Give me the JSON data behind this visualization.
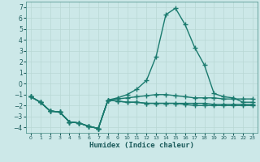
{
  "title": "",
  "xlabel": "Humidex (Indice chaleur)",
  "ylabel": "",
  "background_color": "#cce8e8",
  "grid_color": "#b8d8d4",
  "line_color": "#1a7a6e",
  "xlim": [
    -0.5,
    23.5
  ],
  "ylim": [
    -4.5,
    7.5
  ],
  "xtick_labels": [
    "0",
    "1",
    "2",
    "3",
    "4",
    "5",
    "6",
    "7",
    "8",
    "9",
    "10",
    "11",
    "12",
    "13",
    "14",
    "15",
    "16",
    "17",
    "18",
    "19",
    "20",
    "21",
    "22",
    "23"
  ],
  "xtick_vals": [
    0,
    1,
    2,
    3,
    4,
    5,
    6,
    7,
    8,
    9,
    10,
    11,
    12,
    13,
    14,
    15,
    16,
    17,
    18,
    19,
    20,
    21,
    22,
    23
  ],
  "yticks": [
    -4,
    -3,
    -2,
    -1,
    0,
    1,
    2,
    3,
    4,
    5,
    6,
    7
  ],
  "line1_x": [
    0,
    1,
    2,
    3,
    4,
    5,
    6,
    7,
    8,
    9,
    10,
    11,
    12,
    13,
    14,
    15,
    16,
    17,
    18,
    19,
    20,
    21,
    22,
    23
  ],
  "line1_y": [
    -1.2,
    -1.7,
    -2.5,
    -2.6,
    -3.5,
    -3.6,
    -3.9,
    -4.1,
    -1.5,
    -1.6,
    -1.7,
    -1.7,
    -1.8,
    -1.8,
    -1.8,
    -1.8,
    -1.9,
    -2.0,
    -2.0,
    -2.0,
    -2.0,
    -2.0,
    -2.0,
    -2.0
  ],
  "line2_x": [
    0,
    1,
    2,
    3,
    4,
    5,
    6,
    7,
    8,
    9,
    10,
    11,
    12,
    13,
    14,
    15,
    16,
    17,
    18,
    19,
    20,
    21,
    22,
    23
  ],
  "line2_y": [
    -1.2,
    -1.7,
    -2.5,
    -2.6,
    -3.5,
    -3.6,
    -3.9,
    -4.1,
    -1.5,
    -1.6,
    -1.7,
    -1.7,
    -1.8,
    -1.8,
    -1.8,
    -1.8,
    -1.8,
    -1.8,
    -1.8,
    -1.9,
    -1.9,
    -1.9,
    -1.9,
    -1.9
  ],
  "line3_x": [
    0,
    1,
    2,
    3,
    4,
    5,
    6,
    7,
    8,
    9,
    10,
    11,
    12,
    13,
    14,
    15,
    16,
    17,
    18,
    19,
    20,
    21,
    22,
    23
  ],
  "line3_y": [
    -1.2,
    -1.7,
    -2.5,
    -2.6,
    -3.5,
    -3.6,
    -3.9,
    -4.1,
    -1.5,
    -1.4,
    -1.3,
    -1.2,
    -1.1,
    -1.0,
    -1.0,
    -1.1,
    -1.2,
    -1.3,
    -1.3,
    -1.3,
    -1.4,
    -1.4,
    -1.4,
    -1.4
  ],
  "line4_x": [
    0,
    1,
    2,
    3,
    4,
    5,
    6,
    7,
    8,
    9,
    10,
    11,
    12,
    13,
    14,
    15,
    16,
    17,
    18,
    19,
    20,
    21,
    22,
    23
  ],
  "line4_y": [
    -1.2,
    -1.7,
    -2.5,
    -2.6,
    -3.5,
    -3.6,
    -3.9,
    -4.1,
    -1.5,
    -1.3,
    -1.0,
    -0.5,
    0.3,
    2.5,
    6.3,
    6.9,
    5.4,
    3.3,
    1.7,
    -0.9,
    -1.2,
    -1.3,
    -1.7,
    -1.7
  ],
  "marker": "+",
  "markersize": 4,
  "linewidth": 1.0
}
